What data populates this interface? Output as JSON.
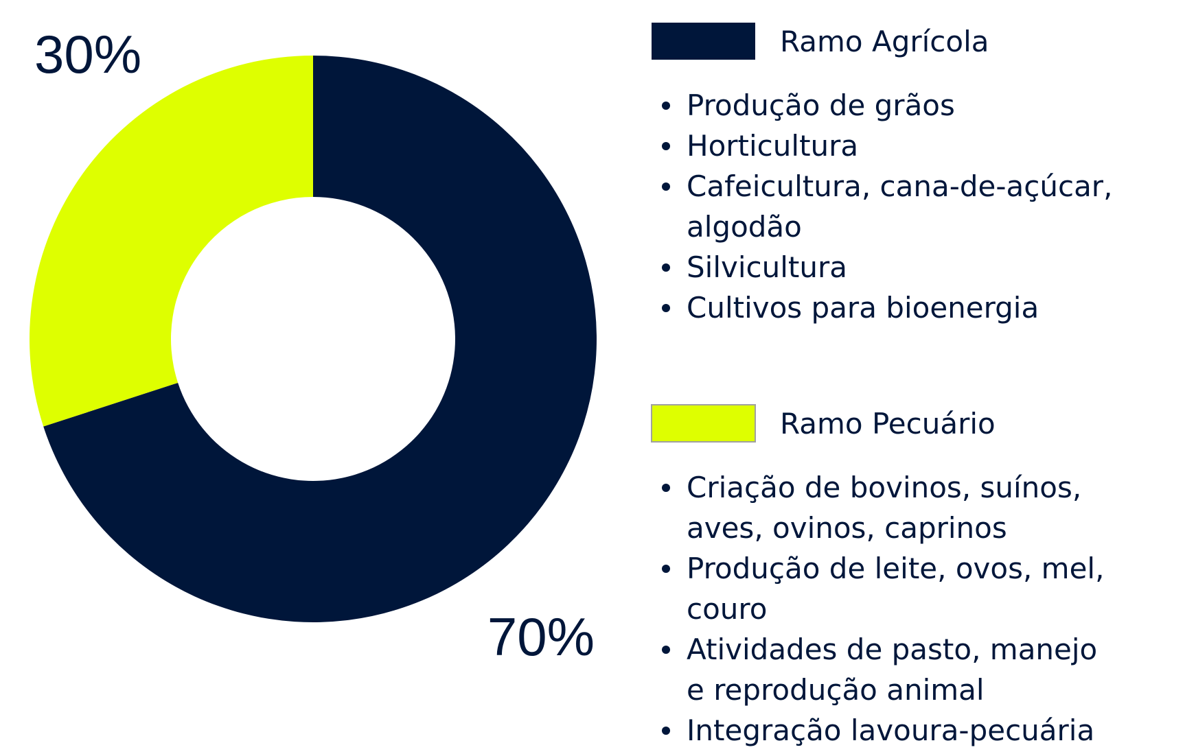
{
  "chart_data": {
    "type": "donut",
    "categories": [
      "Ramo Agrícola",
      "Ramo Pecuário"
    ],
    "values": [
      70,
      30
    ],
    "value_labels": [
      "70%",
      "30%"
    ],
    "colors": [
      "#00163a",
      "#deff00"
    ],
    "details": [
      [
        [
          "Produção de grãos"
        ],
        [
          "Horticultura"
        ],
        [
          "Cafeicultura, cana-de-açúcar,",
          "algodão"
        ],
        [
          "Silvicultura"
        ],
        [
          "Cultivos para bioenergia"
        ]
      ],
      [
        [
          "Criação de bovinos, suínos,",
          "aves, ovinos, caprinos"
        ],
        [
          "Produção de leite, ovos, mel,",
          "couro"
        ],
        [
          "Atividades de pasto, manejo",
          "e reprodução animal"
        ],
        [
          "Integração lavoura-pecuária"
        ]
      ]
    ]
  }
}
